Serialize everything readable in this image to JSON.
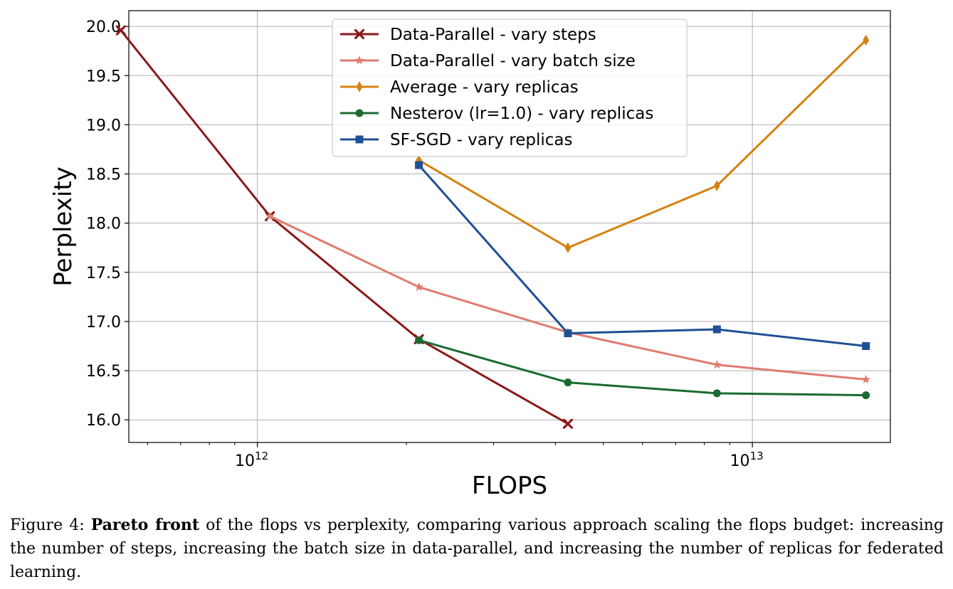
{
  "chart_data": {
    "type": "line",
    "xlabel": "FLOPS",
    "ylabel": "Perplexity",
    "xscale": "log",
    "xlim": [
      550000000000,
      19000000000000
    ],
    "ylim": [
      15.77,
      20.16
    ],
    "yticks": [
      16.0,
      16.5,
      17.0,
      17.5,
      18.0,
      18.5,
      19.0,
      19.5,
      20.0
    ],
    "ytick_labels": [
      "16.0",
      "16.5",
      "17.0",
      "17.5",
      "18.0",
      "18.5",
      "19.0",
      "19.5",
      "20.0"
    ],
    "xticks": [
      {
        "value": 1000000000000,
        "base": "10",
        "exp": "12"
      },
      {
        "value": 10000000000000,
        "base": "10",
        "exp": "13"
      }
    ],
    "grid": true,
    "legend_position": "top-center",
    "series": [
      {
        "name": "Data-Parallel - vary steps",
        "color": "#8b1a1a",
        "marker": "x",
        "x": [
          530000000000,
          1060000000000,
          2120000000000,
          4240000000000
        ],
        "y": [
          19.96,
          18.07,
          16.82,
          15.96
        ]
      },
      {
        "name": "Data-Parallel - vary batch size",
        "color": "#e07b6f",
        "marker": "star",
        "x": [
          1060000000000,
          2120000000000,
          4240000000000,
          8480000000000,
          16960000000000
        ],
        "y": [
          18.07,
          17.35,
          16.89,
          16.56,
          16.41
        ]
      },
      {
        "name": "Average - vary replicas",
        "color": "#d4820f",
        "marker": "diamond",
        "x": [
          2120000000000,
          4240000000000,
          8480000000000,
          16960000000000
        ],
        "y": [
          18.64,
          17.75,
          18.38,
          19.86
        ]
      },
      {
        "name": "Nesterov (lr=1.0) - vary replicas",
        "color": "#1a6b30",
        "marker": "circle",
        "x": [
          2120000000000,
          4240000000000,
          8480000000000,
          16960000000000
        ],
        "y": [
          16.81,
          16.38,
          16.27,
          16.25
        ]
      },
      {
        "name": "SF-SGD - vary replicas",
        "color": "#1f4f96",
        "marker": "square",
        "x": [
          2120000000000,
          4240000000000,
          8480000000000,
          16960000000000
        ],
        "y": [
          18.59,
          16.88,
          16.92,
          16.75
        ]
      }
    ]
  },
  "caption": {
    "prefix": "Figure 4: ",
    "bold": "Pareto front",
    "text": " of the flops vs perplexity, comparing various approach scaling the flops budget: increasing the number of steps, increasing the batch size in data-parallel, and increasing the number of replicas for federated learning."
  }
}
